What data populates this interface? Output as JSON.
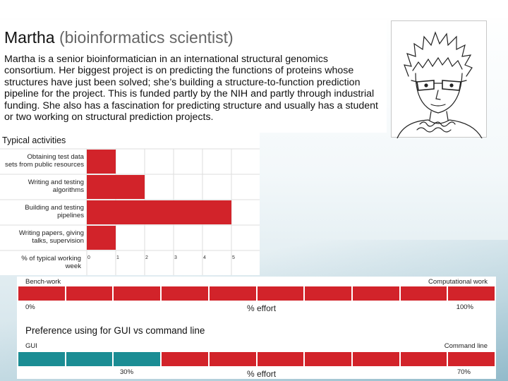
{
  "persona": {
    "name": "Martha",
    "role": "(bioinformatics scientist)",
    "description": "Martha is a senior bioinformatician in an international structural genomics consortium. Her biggest project is on predicting the functions of proteins whose structures have just been solved; she’s building a structure-to-function prediction pipeline for the project. This is funded partly by the NIH and partly through industrial funding. She also has a fascination for predicting structure and usually has a student or two working on structural prediction projects."
  },
  "portrait": {
    "icon": "sketch-portrait-woman-glasses"
  },
  "chart_data": {
    "type": "bar",
    "orientation": "horizontal",
    "title": "Typical activities",
    "categories": [
      "Obtaining test data sets from public resources",
      "Writing and testing algorithms",
      "Building and testing pipelines",
      "Writing papers, giving talks, supervision"
    ],
    "values": [
      1,
      2,
      5,
      1
    ],
    "xlabel": "% of typical working week",
    "xticks": [
      "0",
      "1",
      "2",
      "3",
      "4",
      "5"
    ],
    "xlim": [
      0,
      6
    ],
    "grid": true,
    "bar_color": "#d2232a"
  },
  "effort": {
    "bench_label": "Bench-work",
    "computational_label": "Computational work",
    "bar1": {
      "segments": 10,
      "fill": "#d2232a"
    },
    "bar1_left": "0%",
    "bar1_right": "100%",
    "axis_label": "% effort",
    "heading": "Preference using for GUI vs command line",
    "gui_label": "GUI",
    "cmd_label": "Command line",
    "bar2": {
      "segments": 10,
      "gui_segments": 3,
      "gui_color": "#1b8d94",
      "cmd_color": "#d2232a"
    },
    "bar2_left": "30%",
    "bar2_right": "70%",
    "gui_share": 30,
    "cmd_share": 70
  }
}
